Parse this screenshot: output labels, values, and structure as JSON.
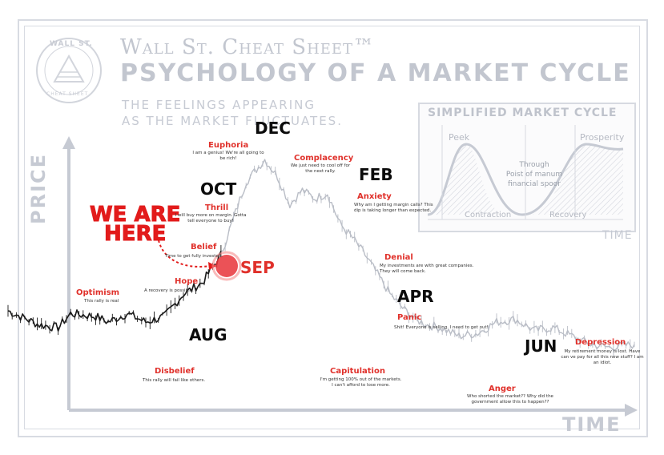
{
  "header": {
    "logo_text_top": "WALL ST.",
    "logo_text_bottom": "CHEAT SHEET",
    "title_line1": "Wall St. Cheat Sheet™",
    "title_line2": "PSYCHOLOGY OF A MARKET CYCLE",
    "subtitle_line1": "THE FEELINGS APPEARING",
    "subtitle_line2": "AS THE MARKET FLUCTUATES."
  },
  "axes": {
    "y_label": "PRICE",
    "x_label": "TIME"
  },
  "callout": {
    "line1": "WE ARE",
    "line2": "HERE"
  },
  "colors": {
    "accent_red": "#e0312b",
    "axis_gray": "#c6cad3",
    "price_line": "#1a1a1a",
    "fade_line": "#b9bdc6"
  },
  "months": [
    "AUG",
    "SEP",
    "OCT",
    "DEC",
    "FEB",
    "APR",
    "JUN"
  ],
  "inset": {
    "title": "SIMPLIFIED MARKET CYCLE",
    "peak": "Peek",
    "prosperity": "Prosperity",
    "middle_lines": [
      "Through",
      "Poist of manum",
      "financial spoor"
    ],
    "contraction": "Contraction",
    "recovery": "Recovery",
    "time_label": "TIME"
  },
  "chart_data": {
    "type": "line",
    "title": "Psychology of a Market Cycle",
    "xlabel": "TIME",
    "ylabel": "PRICE",
    "x_range": [
      0,
      100
    ],
    "ylim": [
      0,
      100
    ],
    "x": [
      0,
      5,
      8,
      10,
      14,
      16,
      19,
      22,
      25,
      28,
      31,
      34,
      36,
      38,
      41,
      43,
      45,
      47,
      49,
      51,
      53,
      55,
      57,
      59,
      61,
      63,
      65,
      67,
      69,
      72,
      75,
      78,
      81,
      84,
      87,
      90,
      93,
      96,
      100
    ],
    "y": [
      32,
      27,
      26,
      31,
      30,
      28,
      31,
      28,
      30,
      38,
      42,
      52,
      65,
      78,
      86,
      80,
      70,
      75,
      72,
      74,
      63,
      58,
      52,
      45,
      38,
      33,
      29,
      27,
      26,
      23,
      24,
      28,
      29,
      25,
      26,
      23,
      20,
      19,
      20
    ],
    "solid_until_x": 34,
    "stages": [
      {
        "name": "Optimism",
        "note": "This rally is real"
      },
      {
        "name": "Disbelief",
        "note": "This rally will fail like others."
      },
      {
        "name": "Hope",
        "note": "A recovery is possible."
      },
      {
        "name": "Belief",
        "note": "Time to get fully invested."
      },
      {
        "name": "Thrill",
        "note": "I will buy more on margin. Gotta tell everyone to buy!"
      },
      {
        "name": "Euphoria",
        "note": "I am a genius! We're all going to be rich!"
      },
      {
        "name": "Complacency",
        "note": "We just need to cool off for the next rally."
      },
      {
        "name": "Anxiety",
        "note": "Why am I getting margin calls? This dip is taking longer than expected."
      },
      {
        "name": "Denial",
        "note": "My investments are with great companies. They will come back."
      },
      {
        "name": "Panic",
        "note": "Shit! Everyone is selling. I need to get out!"
      },
      {
        "name": "Capitulation",
        "note": "I'm getting 100% out of the markets. I can't afford to lose more."
      },
      {
        "name": "Anger",
        "note": "Who shorted the market?? Why did the government allow this to happen??"
      },
      {
        "name": "Depression",
        "note": "My retirement money is lost. Have can ve pay for all this new stuff? I am an idiot."
      }
    ]
  }
}
